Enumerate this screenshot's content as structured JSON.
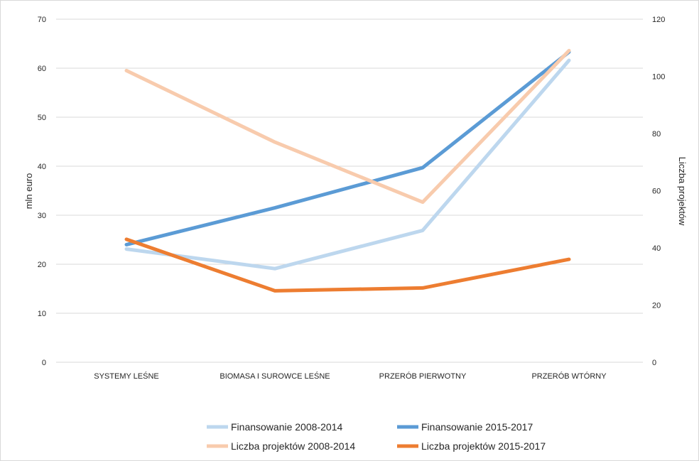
{
  "chart_data": {
    "type": "line",
    "categories": [
      "SYSTEMY LEŚNE",
      "BIOMASA I SUROWCE LEŚNE",
      "PRZERÓB PIERWOTNY",
      "PRZERÓB WTÓRNY"
    ],
    "y_left": {
      "label": "mln euro",
      "range": [
        0,
        70
      ],
      "ticks": [
        "0",
        "10",
        "20",
        "30",
        "40",
        "50",
        "60",
        "70"
      ]
    },
    "y_right": {
      "label": "Liczba projektów",
      "range": [
        0,
        120
      ],
      "ticks": [
        "0",
        "20",
        "40",
        "60",
        "80",
        "100",
        "120"
      ]
    },
    "grid": true,
    "legend_position": "bottom",
    "series": [
      {
        "name": "Finansowanie 2008-2014",
        "axis": "left",
        "color": "#bdd7ee",
        "values": [
          23.1,
          19.1,
          26.9,
          61.6
        ]
      },
      {
        "name": "Finansowanie 2015-2017",
        "axis": "left",
        "color": "#5b9bd5",
        "values": [
          24.0,
          31.5,
          39.7,
          63.3
        ]
      },
      {
        "name": "Liczba projektów 2008-2014",
        "axis": "right",
        "color": "#f8cbad",
        "values": [
          102,
          77,
          56,
          109
        ]
      },
      {
        "name": "Liczba projektów 2015-2017",
        "axis": "right",
        "color": "#ed7d31",
        "values": [
          43,
          25,
          26,
          36
        ]
      }
    ]
  }
}
